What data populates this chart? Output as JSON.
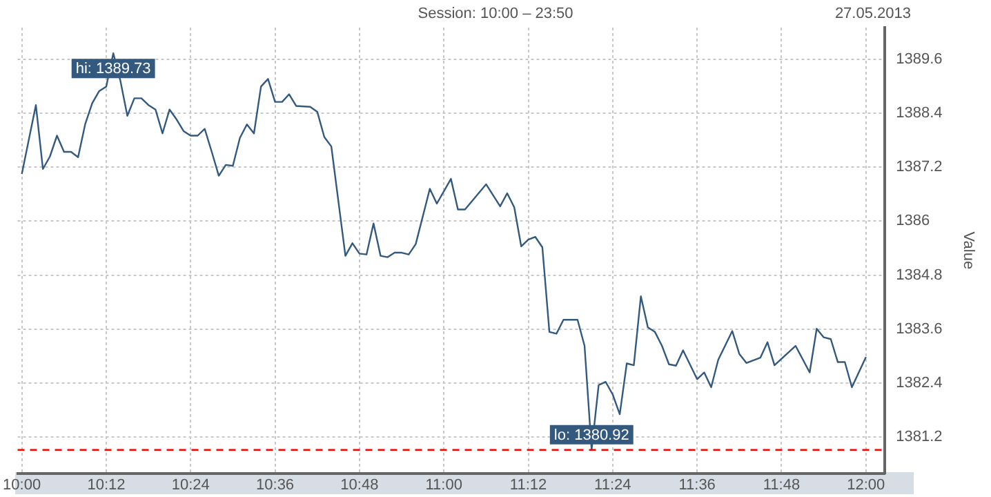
{
  "chart_data": {
    "type": "line",
    "title": "Session: 10:00 – 23:50",
    "subtitle": "27.05.2013",
    "ylabel": "Value",
    "x": [
      10,
      10.0333,
      10.05,
      10.0667,
      10.0833,
      10.1,
      10.1167,
      10.1333,
      10.15,
      10.1667,
      10.1833,
      10.2,
      10.2167,
      10.2333,
      10.25,
      10.2667,
      10.2833,
      10.3,
      10.3167,
      10.3333,
      10.35,
      10.3667,
      10.3833,
      10.4,
      10.4167,
      10.4333,
      10.45,
      10.4667,
      10.4833,
      10.5,
      10.5167,
      10.5333,
      10.55,
      10.5667,
      10.5833,
      10.6,
      10.6167,
      10.6333,
      10.65,
      10.6833,
      10.7,
      10.7167,
      10.7333,
      10.7667,
      10.7833,
      10.8,
      10.8167,
      10.8333,
      10.85,
      10.8667,
      10.8833,
      10.9,
      10.9167,
      10.9333,
      10.9667,
      10.9833,
      11.0167,
      11.0333,
      11.05,
      11.1,
      11.1333,
      11.15,
      11.1667,
      11.1833,
      11.2,
      11.2167,
      11.2333,
      11.25,
      11.2667,
      11.2833,
      11.3167,
      11.3333,
      11.35,
      11.3667,
      11.3833,
      11.4,
      11.4167,
      11.4333,
      11.45,
      11.4667,
      11.4833,
      11.5,
      11.5167,
      11.5333,
      11.55,
      11.5667,
      11.6,
      11.6167,
      11.6333,
      11.65,
      11.6833,
      11.7,
      11.7167,
      11.75,
      11.7667,
      11.7833,
      11.8333,
      11.8667,
      11.8833,
      11.9,
      11.9167,
      11.9333,
      11.95,
      11.9667,
      12
    ],
    "series": [
      {
        "color": "#34597f",
        "values": [
          1387.05,
          1388.58,
          1387.16,
          1387.44,
          1387.9,
          1387.54,
          1387.54,
          1387.42,
          1388.15,
          1388.62,
          1388.89,
          1388.99,
          1389.73,
          1389.13,
          1388.34,
          1388.73,
          1388.73,
          1388.58,
          1388.48,
          1387.95,
          1388.48,
          1388.26,
          1388.0,
          1387.9,
          1387.9,
          1388.05,
          1387.54,
          1387.01,
          1387.25,
          1387.23,
          1387.85,
          1388.15,
          1387.95,
          1388.99,
          1389.16,
          1388.65,
          1388.65,
          1388.82,
          1388.56,
          1388.54,
          1388.43,
          1387.87,
          1387.66,
          1385.23,
          1385.51,
          1385.28,
          1385.26,
          1385.95,
          1385.23,
          1385.2,
          1385.3,
          1385.3,
          1385.26,
          1385.49,
          1386.72,
          1386.39,
          1386.94,
          1386.26,
          1386.26,
          1386.82,
          1386.33,
          1386.62,
          1386.31,
          1385.44,
          1385.59,
          1385.65,
          1385.42,
          1383.54,
          1383.5,
          1383.81,
          1383.81,
          1383.23,
          1380.92,
          1382.36,
          1382.43,
          1382.15,
          1381.71,
          1382.84,
          1382.8,
          1384.33,
          1383.64,
          1383.54,
          1383.23,
          1382.82,
          1382.79,
          1383.13,
          1382.49,
          1382.64,
          1382.31,
          1382.92,
          1383.56,
          1383.05,
          1382.85,
          1382.97,
          1383.31,
          1382.8,
          1383.23,
          1382.64,
          1383.61,
          1383.42,
          1383.38,
          1382.87,
          1382.87,
          1382.31,
          1382.98
        ]
      }
    ],
    "xlim": [
      9.99,
      12.045
    ],
    "xticks": [
      {
        "value": 10,
        "label": "10:00"
      },
      {
        "value": 10.2,
        "label": "10:12"
      },
      {
        "value": 10.4,
        "label": "10:24"
      },
      {
        "value": 10.6,
        "label": "10:36"
      },
      {
        "value": 10.8,
        "label": "10:48"
      },
      {
        "value": 11,
        "label": "11:00"
      },
      {
        "value": 11.2,
        "label": "11:12"
      },
      {
        "value": 11.4,
        "label": "11:24"
      },
      {
        "value": 11.6,
        "label": "11:36"
      },
      {
        "value": 11.8,
        "label": "11:48"
      },
      {
        "value": 12,
        "label": "12:00"
      }
    ],
    "ylim": [
      1380.4,
      1390.3
    ],
    "yticks": [
      1381.2,
      1382.4,
      1383.6,
      1384.8,
      1386,
      1387.2,
      1388.4,
      1389.6
    ],
    "ref_lines": [
      {
        "axis": "y",
        "value": 1380.92,
        "color": "#ff0000",
        "line_style": "dashed"
      }
    ],
    "annotations": [
      {
        "text": "hi: 1389.73",
        "x": 10.2167,
        "y": 1389.73
      },
      {
        "text": "lo: 1380.92",
        "x": 11.35,
        "y": 1380.92
      }
    ],
    "grid": true,
    "legend": false,
    "marker": "none",
    "line_style": "solid"
  }
}
